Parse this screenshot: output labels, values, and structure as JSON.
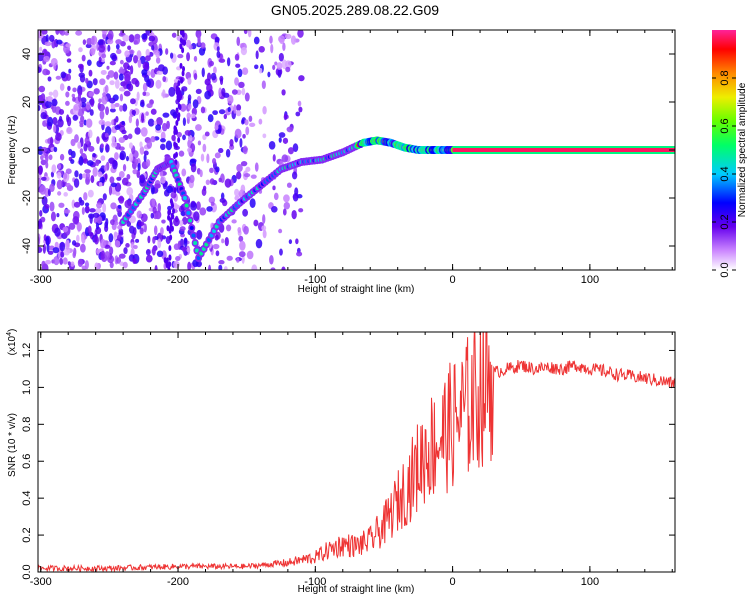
{
  "title": "GN05.2025.289.08.22.G09",
  "colorbar": {
    "label": "Normalized spectral amplitude",
    "ticks": [
      "0.0",
      "0.2",
      "0.4",
      "0.6",
      "0.8"
    ],
    "tick_values": [
      0.0,
      0.2,
      0.4,
      0.6,
      0.8
    ],
    "range": [
      0,
      1
    ]
  },
  "chart_data": [
    {
      "type": "heatmap",
      "xlabel": "Height of straight line (km)",
      "ylabel": "Frequency (Hz)",
      "xlim": [
        -302,
        162
      ],
      "ylim": [
        -50,
        50
      ],
      "xticks": [
        -300,
        -200,
        -100,
        0,
        100
      ],
      "xtick_labels": [
        "-300",
        "-200",
        "-100",
        "0",
        "100"
      ],
      "yticks": [
        -40,
        -20,
        0,
        20,
        40
      ],
      "ytick_labels": [
        "-40",
        "-20",
        "0",
        "20",
        "40"
      ],
      "ridge": {
        "x": [
          -240,
          -225,
          -215,
          -205,
          -195,
          -185,
          -170,
          -155,
          -140,
          -125,
          -110,
          -95,
          -80,
          -65,
          -55,
          -45,
          -35,
          -25,
          -15,
          -5,
          5,
          40,
          80,
          120,
          162
        ],
        "y": [
          -30,
          -18,
          -8,
          -5,
          -20,
          -45,
          -30,
          -22,
          -15,
          -8,
          -5,
          -4,
          -1,
          3,
          4,
          3,
          1,
          0,
          0,
          0,
          0,
          0,
          0,
          0,
          0
        ]
      }
    },
    {
      "type": "line",
      "xlabel": "Height of straight line (km)",
      "ylabel": "SNR (10 * v/v)",
      "scale_label": "(x10",
      "scale_exp": "4",
      "scale_close": ")",
      "xlim": [
        -302,
        162
      ],
      "ylim": [
        0,
        1.3
      ],
      "xticks": [
        -300,
        -200,
        -100,
        0,
        100
      ],
      "xtick_labels": [
        "-300",
        "-200",
        "-100",
        "0",
        "100"
      ],
      "yticks": [
        0.0,
        0.2,
        0.4,
        0.6,
        0.8,
        1.0,
        1.2
      ],
      "ytick_labels": [
        "0.0",
        "0.2",
        "0.4",
        "0.6",
        "0.8",
        "1.0",
        "1.2"
      ],
      "series": [
        {
          "name": "SNR",
          "color": "#ee3333",
          "x": [
            -302,
            -250,
            -200,
            -150,
            -120,
            -100,
            -90,
            -80,
            -70,
            -60,
            -50,
            -40,
            -30,
            -20,
            -10,
            0,
            10,
            20,
            30,
            40,
            50,
            60,
            70,
            80,
            90,
            100,
            110,
            120,
            140,
            162
          ],
          "y": [
            0.02,
            0.02,
            0.03,
            0.03,
            0.05,
            0.08,
            0.12,
            0.15,
            0.14,
            0.17,
            0.25,
            0.38,
            0.5,
            0.65,
            0.72,
            0.8,
            0.88,
            1.0,
            1.08,
            1.1,
            1.12,
            1.1,
            1.11,
            1.1,
            1.12,
            1.1,
            1.09,
            1.07,
            1.05,
            1.02
          ]
        }
      ]
    }
  ]
}
